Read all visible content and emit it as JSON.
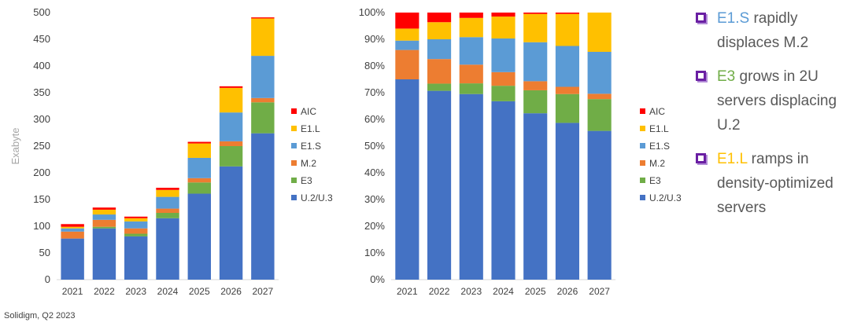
{
  "chart_data": [
    {
      "type": "bar",
      "stacked": true,
      "ylabel": "Exabyte",
      "ylim": [
        0,
        500
      ],
      "yticks": [
        "0",
        "50",
        "100",
        "150",
        "200",
        "250",
        "300",
        "350",
        "400",
        "450",
        "500"
      ],
      "categories": [
        "2021",
        "2022",
        "2023",
        "2024",
        "2025",
        "2026",
        "2027"
      ],
      "series": [
        {
          "name": "U.2/U.3",
          "color": "#4472c4",
          "values": [
            77,
            96,
            81,
            115,
            161,
            212,
            274
          ]
        },
        {
          "name": "E3",
          "color": "#70ad47",
          "values": [
            0,
            3,
            5,
            10,
            21,
            38,
            58
          ]
        },
        {
          "name": "M.2",
          "color": "#ed7d31",
          "values": [
            13,
            13,
            10,
            8,
            8,
            9,
            8
          ]
        },
        {
          "name": "E1.S",
          "color": "#5b9bd5",
          "values": [
            6,
            10,
            13,
            22,
            38,
            54,
            79
          ]
        },
        {
          "name": "E1.L",
          "color": "#ffc000",
          "values": [
            3,
            9,
            6,
            13,
            27,
            46,
            70
          ]
        },
        {
          "name": "AIC",
          "color": "#ff0000",
          "values": [
            5,
            4,
            3,
            4,
            3,
            3,
            2
          ]
        }
      ]
    },
    {
      "type": "bar",
      "stacked": true,
      "percent": true,
      "ylim": [
        0,
        100
      ],
      "yticks": [
        "0%",
        "10%",
        "20%",
        "30%",
        "40%",
        "50%",
        "60%",
        "70%",
        "80%",
        "90%",
        "100%"
      ],
      "categories": [
        "2021",
        "2022",
        "2023",
        "2024",
        "2025",
        "2026",
        "2027"
      ],
      "series": [
        {
          "name": "U.2/U.3",
          "color": "#4472c4",
          "values": [
            75,
            70.7,
            69.5,
            66.8,
            62.3,
            58.7,
            55.7
          ]
        },
        {
          "name": "E3",
          "color": "#70ad47",
          "values": [
            0,
            2.7,
            4,
            5.8,
            8.6,
            10.8,
            11.9
          ]
        },
        {
          "name": "M.2",
          "color": "#ed7d31",
          "values": [
            11,
            9.2,
            7,
            5.1,
            3.4,
            2.7,
            2
          ]
        },
        {
          "name": "E1.S",
          "color": "#5b9bd5",
          "values": [
            3.5,
            7.4,
            10.3,
            12.6,
            14.6,
            15.3,
            15.7
          ]
        },
        {
          "name": "E1.L",
          "color": "#ffc000",
          "values": [
            4.5,
            6.4,
            7.2,
            8.2,
            10.6,
            12,
            14.7
          ]
        },
        {
          "name": "AIC",
          "color": "#ff0000",
          "values": [
            6,
            3.6,
            2,
            1.5,
            0.5,
            0.5,
            0
          ]
        }
      ]
    }
  ],
  "legend_order": [
    "AIC",
    "E1.L",
    "E1.S",
    "M.2",
    "E3",
    "U.2/U.3"
  ],
  "bullets": [
    {
      "highlight": "E1.S",
      "highlight_color": "#5b9bd5",
      "text": " rapidly displaces M.2"
    },
    {
      "highlight": "E3",
      "highlight_color": "#70ad47",
      "text": " grows in 2U servers displacing U.2"
    },
    {
      "highlight": "E1.L",
      "highlight_color": "#ffc000",
      "text": " ramps in density-optimized servers"
    }
  ],
  "source": "Solidigm, Q2 2023"
}
